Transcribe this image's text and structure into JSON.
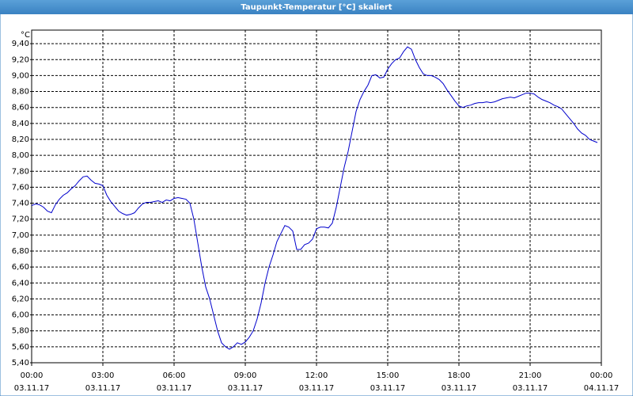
{
  "chart_data": {
    "type": "line",
    "title": "Taupunkt-Temperatur [°C] skaliert",
    "y_unit": "°C",
    "x": [
      0,
      10,
      20,
      30,
      40,
      50,
      60,
      70,
      80,
      90,
      100,
      110,
      120,
      130,
      140,
      150,
      160,
      170,
      180,
      190,
      200,
      210,
      220,
      230,
      240,
      250,
      260,
      270,
      280,
      290,
      300,
      310,
      320,
      330,
      340,
      350,
      360,
      370,
      380,
      390,
      400,
      410,
      420,
      430,
      440,
      450,
      460,
      470,
      480,
      490,
      500,
      510,
      520,
      530,
      540,
      550,
      560,
      570,
      580,
      590,
      600,
      610,
      620,
      630,
      640,
      650,
      660,
      670,
      680,
      690,
      700,
      710,
      720,
      730,
      740,
      750,
      760,
      770,
      780,
      790,
      800,
      810,
      820,
      830,
      840,
      850,
      860,
      870,
      880,
      890,
      900,
      910,
      920,
      930,
      940,
      950,
      960,
      970,
      980,
      990,
      1000,
      1010,
      1020,
      1030,
      1040,
      1050,
      1060,
      1070,
      1080,
      1090,
      1100,
      1110,
      1120,
      1130,
      1140,
      1150,
      1160,
      1170,
      1180,
      1190,
      1200,
      1210,
      1220,
      1230,
      1240,
      1250,
      1260,
      1270,
      1280,
      1290,
      1300,
      1310,
      1320,
      1330,
      1340,
      1350,
      1360,
      1370,
      1380,
      1390,
      1400,
      1410,
      1420,
      1430
    ],
    "series": [
      {
        "color": "#0000cc",
        "values": [
          7.37,
          7.39,
          7.38,
          7.35,
          7.3,
          7.28,
          7.38,
          7.45,
          7.5,
          7.53,
          7.58,
          7.62,
          7.68,
          7.73,
          7.74,
          7.69,
          7.65,
          7.64,
          7.62,
          7.5,
          7.42,
          7.36,
          7.3,
          7.27,
          7.25,
          7.26,
          7.28,
          7.34,
          7.39,
          7.41,
          7.41,
          7.42,
          7.43,
          7.41,
          7.44,
          7.43,
          7.46,
          7.47,
          7.46,
          7.45,
          7.4,
          7.2,
          6.9,
          6.6,
          6.35,
          6.2,
          6.0,
          5.8,
          5.65,
          5.6,
          5.57,
          5.6,
          5.65,
          5.63,
          5.66,
          5.72,
          5.8,
          5.95,
          6.15,
          6.4,
          6.6,
          6.75,
          6.92,
          7.02,
          7.12,
          7.1,
          7.05,
          6.82,
          6.82,
          6.88,
          6.9,
          6.95,
          7.08,
          7.1,
          7.1,
          7.09,
          7.15,
          7.35,
          7.6,
          7.85,
          8.05,
          8.3,
          8.55,
          8.7,
          8.8,
          8.88,
          9.0,
          9.01,
          8.97,
          8.98,
          9.08,
          9.15,
          9.2,
          9.22,
          9.3,
          9.36,
          9.33,
          9.2,
          9.1,
          9.02,
          9.0,
          9.0,
          8.98,
          8.95,
          8.9,
          8.82,
          8.75,
          8.68,
          8.62,
          8.6,
          8.62,
          8.63,
          8.65,
          8.66,
          8.66,
          8.67,
          8.66,
          8.67,
          8.69,
          8.71,
          8.72,
          8.73,
          8.72,
          8.74,
          8.76,
          8.78,
          8.78,
          8.77,
          8.73,
          8.7,
          8.68,
          8.66,
          8.63,
          8.61,
          8.58,
          8.52,
          8.46,
          8.4,
          8.33,
          8.28,
          8.25,
          8.2,
          8.18,
          8.16
        ]
      }
    ],
    "xlim": [
      0,
      1440
    ],
    "xticks": [
      {
        "value": 0,
        "label": "00:00",
        "sublabel": "03.11.17"
      },
      {
        "value": 180,
        "label": "03:00",
        "sublabel": "03.11.17"
      },
      {
        "value": 360,
        "label": "06:00",
        "sublabel": "03.11.17"
      },
      {
        "value": 540,
        "label": "09:00",
        "sublabel": "03.11.17"
      },
      {
        "value": 720,
        "label": "12:00",
        "sublabel": "03.11.17"
      },
      {
        "value": 900,
        "label": "15:00",
        "sublabel": "03.11.17"
      },
      {
        "value": 1080,
        "label": "18:00",
        "sublabel": "03.11.17"
      },
      {
        "value": 1260,
        "label": "21:00",
        "sublabel": "03.11.17"
      },
      {
        "value": 1440,
        "label": "00:00",
        "sublabel": "04.11.17"
      }
    ],
    "ylim": [
      5.4,
      9.57
    ],
    "yticks": [
      {
        "value": 5.4,
        "label": "5,40"
      },
      {
        "value": 5.6,
        "label": "5,60"
      },
      {
        "value": 5.8,
        "label": "5,80"
      },
      {
        "value": 6.0,
        "label": "6,00"
      },
      {
        "value": 6.2,
        "label": "6,20"
      },
      {
        "value": 6.4,
        "label": "6,40"
      },
      {
        "value": 6.6,
        "label": "6,60"
      },
      {
        "value": 6.8,
        "label": "6,80"
      },
      {
        "value": 7.0,
        "label": "7,00"
      },
      {
        "value": 7.2,
        "label": "7,20"
      },
      {
        "value": 7.4,
        "label": "7,40"
      },
      {
        "value": 7.6,
        "label": "7,60"
      },
      {
        "value": 7.8,
        "label": "7,80"
      },
      {
        "value": 8.0,
        "label": "8,00"
      },
      {
        "value": 8.2,
        "label": "8,20"
      },
      {
        "value": 8.4,
        "label": "8,40"
      },
      {
        "value": 8.6,
        "label": "8,60"
      },
      {
        "value": 8.8,
        "label": "8,80"
      },
      {
        "value": 9.0,
        "label": "9,00"
      },
      {
        "value": 9.2,
        "label": "9,20"
      },
      {
        "value": 9.4,
        "label": "9,40"
      }
    ],
    "grid": true
  }
}
